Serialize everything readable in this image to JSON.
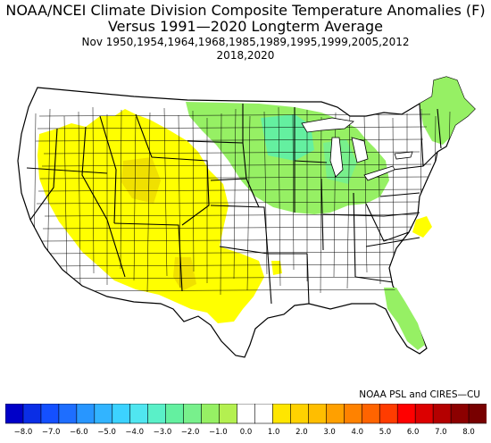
{
  "title": {
    "line1": "NOAA/NCEI Climate Division Composite Temperature Anomalies (F)",
    "line2": "Versus 1991—2020 Longterm Average",
    "line3": "Nov    1950,1954,1964,1968,1985,1989,1995,1999,2005,2012",
    "line4": "2018,2020"
  },
  "credit": "NOAA PSL and CIRES—CU",
  "legend": {
    "ticks": [
      "−8.0",
      "−7.0",
      "−6.0",
      "−5.0",
      "−4.0",
      "−3.0",
      "−2.0",
      "−1.0",
      "0.0",
      "1.0",
      "2.0",
      "3.0",
      "4.0",
      "5.0",
      "6.0",
      "7.0",
      "8.0"
    ],
    "colors": [
      "#0000c8",
      "#0a2ee6",
      "#1450ff",
      "#1e6eff",
      "#2896ff",
      "#32b4ff",
      "#3cd2ff",
      "#50e6f0",
      "#5af0c8",
      "#64f0a0",
      "#78f08c",
      "#96f064",
      "#b4f050",
      "#ffffff",
      "#ffffff",
      "#ffe600",
      "#ffd200",
      "#ffbe00",
      "#ffa000",
      "#ff8200",
      "#ff6400",
      "#ff3c00",
      "#ff0000",
      "#dc0000",
      "#b40000",
      "#8c0000",
      "#780000"
    ]
  },
  "map": {
    "land_color": "#ffffff",
    "border_color": "#000000",
    "warm_color": "#ffff00",
    "warm_dark_color": "#f0e000",
    "cool_color": "#96f064",
    "cool_mid_color": "#78f08c",
    "cool_deep_color": "#64f0a0"
  }
}
